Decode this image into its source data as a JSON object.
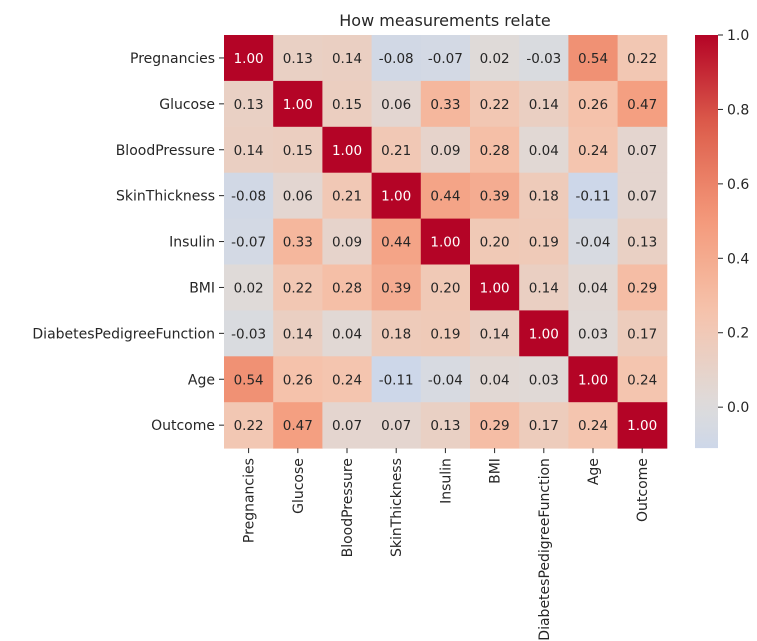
{
  "chart_data": {
    "type": "heatmap",
    "title": "How measurements relate",
    "xlabel": "",
    "ylabel": "",
    "row_labels": [
      "Pregnancies",
      "Glucose",
      "BloodPressure",
      "SkinThickness",
      "Insulin",
      "BMI",
      "DiabetesPedigreeFunction",
      "Age",
      "Outcome"
    ],
    "col_labels": [
      "Pregnancies",
      "Glucose",
      "BloodPressure",
      "SkinThickness",
      "Insulin",
      "BMI",
      "DiabetesPedigreeFunction",
      "Age",
      "Outcome"
    ],
    "values": [
      [
        1.0,
        0.13,
        0.14,
        -0.08,
        -0.07,
        0.02,
        -0.03,
        0.54,
        0.22
      ],
      [
        0.13,
        1.0,
        0.15,
        0.06,
        0.33,
        0.22,
        0.14,
        0.26,
        0.47
      ],
      [
        0.14,
        0.15,
        1.0,
        0.21,
        0.09,
        0.28,
        0.04,
        0.24,
        0.07
      ],
      [
        -0.08,
        0.06,
        0.21,
        1.0,
        0.44,
        0.39,
        0.18,
        -0.11,
        0.07
      ],
      [
        -0.07,
        0.33,
        0.09,
        0.44,
        1.0,
        0.2,
        0.19,
        -0.04,
        0.13
      ],
      [
        0.02,
        0.22,
        0.28,
        0.39,
        0.2,
        1.0,
        0.14,
        0.04,
        0.29
      ],
      [
        -0.03,
        0.14,
        0.04,
        0.18,
        0.19,
        0.14,
        1.0,
        0.03,
        0.17
      ],
      [
        0.54,
        0.26,
        0.24,
        -0.11,
        -0.04,
        0.04,
        0.03,
        1.0,
        0.24
      ],
      [
        0.22,
        0.47,
        0.07,
        0.07,
        0.13,
        0.29,
        0.17,
        0.24,
        1.0
      ]
    ],
    "value_format": "0.00",
    "colormap": "coolwarm",
    "color_center": 0.0,
    "color_range": [
      -0.11,
      1.0
    ],
    "colorbar": {
      "ticks": [
        0.0,
        0.2,
        0.4,
        0.6,
        0.8,
        1.0
      ],
      "tick_labels": [
        "0.0",
        "0.2",
        "0.4",
        "0.6",
        "0.8",
        "1.0"
      ],
      "placement": "right"
    },
    "annotations": true,
    "grid": false,
    "colors": {
      "cold": "#b0cbfc",
      "neutral": "#dddcdc",
      "hot": "#b40426",
      "text_dark": "#262626",
      "text_light": "#ffffff"
    }
  }
}
